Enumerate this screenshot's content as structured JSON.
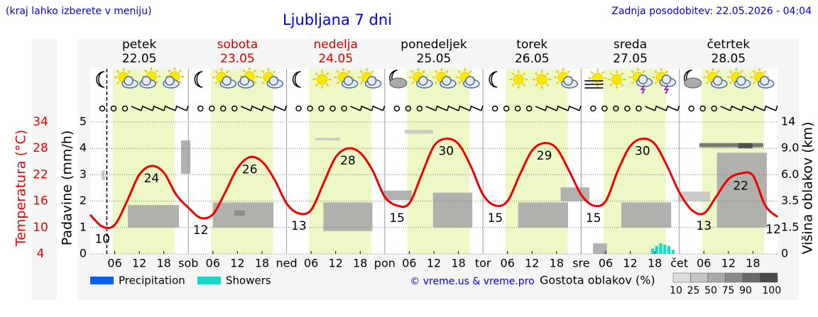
{
  "chart_data": {
    "type": "line",
    "menu_hint": "(kraj lahko izberete v meniju)",
    "title": "Ljubljana 7 dni",
    "updated": "Zadnja posodobitev: 22.05.2026 - 04:04",
    "ylabel": "Padavine (mm/h)",
    "y_temp_label": "Temperatura (°C)",
    "y2label": "Višina oblakov (km)",
    "xlim": [
      0,
      168
    ],
    "now_hour": 4.07,
    "daylight_hours": [
      5.5,
      20.7
    ],
    "ylim": [
      0,
      5
    ],
    "yticks": [
      0,
      1,
      2,
      3,
      4,
      5
    ],
    "temp_lim": [
      4,
      34
    ],
    "temp_ticks": [
      4,
      10,
      16,
      22,
      28,
      34
    ],
    "y2ticks": [
      0,
      1.5,
      3.5,
      6.0,
      9.0,
      14
    ],
    "y2tick_labels": [
      "0",
      "1.5",
      "3.5",
      "6.0",
      "9.0",
      "14"
    ],
    "grid": true,
    "days": [
      {
        "name": "petek",
        "date": "22.05",
        "abbr": null,
        "color": "#000000",
        "ticks": [
          {
            "value": 6,
            "label": "06"
          },
          {
            "value": 12,
            "label": "12"
          },
          {
            "value": 18,
            "label": "18"
          }
        ]
      },
      {
        "name": "sobota",
        "date": "23.05",
        "abbr": "sob",
        "color": "#e00000",
        "ticks": [
          {
            "value": 6,
            "label": "06"
          },
          {
            "value": 12,
            "label": "12"
          },
          {
            "value": 18,
            "label": "18"
          }
        ]
      },
      {
        "name": "nedelja",
        "date": "24.05",
        "abbr": "ned",
        "color": "#e00000",
        "ticks": [
          {
            "value": 6,
            "label": "06"
          },
          {
            "value": 12,
            "label": "12"
          },
          {
            "value": 18,
            "label": "18"
          }
        ]
      },
      {
        "name": "ponedeljek",
        "date": "25.05",
        "abbr": "pon",
        "color": "#000000",
        "ticks": [
          {
            "value": 6,
            "label": "06"
          },
          {
            "value": 12,
            "label": "12"
          },
          {
            "value": 18,
            "label": "18"
          }
        ]
      },
      {
        "name": "torek",
        "date": "26.05",
        "abbr": "tor",
        "color": "#000000",
        "ticks": [
          {
            "value": 6,
            "label": "06"
          },
          {
            "value": 12,
            "label": "12"
          },
          {
            "value": 18,
            "label": "18"
          }
        ]
      },
      {
        "name": "sreda",
        "date": "27.05",
        "abbr": "sre",
        "color": "#000000",
        "ticks": [
          {
            "value": 6,
            "label": "06"
          },
          {
            "value": 12,
            "label": "12"
          },
          {
            "value": 18,
            "label": "18"
          }
        ]
      },
      {
        "name": "četrtek",
        "date": "28.05",
        "abbr": "čet",
        "color": "#000000",
        "ticks": [
          {
            "value": 6,
            "label": "06"
          },
          {
            "value": 12,
            "label": "12"
          },
          {
            "value": 18,
            "label": "18"
          }
        ]
      }
    ],
    "temperature": {
      "color": "#ee0000",
      "hours": [
        0,
        3,
        6,
        9,
        12,
        15,
        18,
        21,
        24,
        27,
        30,
        33,
        36,
        39,
        42,
        45,
        48,
        51,
        54,
        57,
        60,
        63,
        66,
        69,
        72,
        75,
        78,
        81,
        84,
        87,
        90,
        93,
        96,
        99,
        102,
        105,
        108,
        111,
        114,
        117,
        120,
        123,
        126,
        129,
        132,
        135,
        138,
        141,
        144,
        147,
        150,
        153,
        156,
        159,
        162,
        165,
        168
      ],
      "values": [
        12.9,
        10.2,
        10.6,
        16,
        22,
        24,
        22.5,
        17.5,
        14.5,
        12.2,
        13,
        18,
        23.5,
        26,
        25,
        21,
        15.5,
        13.2,
        14,
        20,
        26,
        28,
        27,
        23,
        17,
        15,
        15.5,
        22,
        28.5,
        30.2,
        29,
        24,
        17.5,
        15,
        16,
        22,
        27.5,
        29.2,
        28,
        23,
        17.5,
        15,
        16,
        23,
        28.5,
        30.2,
        29,
        24,
        18,
        14,
        13.2,
        17,
        21,
        22.3,
        21.8,
        15,
        12.4
      ],
      "value_labels": [
        null,
        "10",
        null,
        null,
        null,
        "24",
        null,
        null,
        null,
        "12",
        null,
        null,
        null,
        "26",
        null,
        null,
        null,
        "13",
        null,
        null,
        null,
        "28",
        null,
        null,
        null,
        "15",
        null,
        null,
        null,
        "30",
        null,
        null,
        null,
        "15",
        null,
        null,
        null,
        "29",
        null,
        null,
        null,
        "15",
        null,
        null,
        null,
        "30",
        null,
        null,
        null,
        null,
        "13",
        null,
        null,
        "22",
        null,
        null,
        "12"
      ]
    },
    "series": [
      {
        "name": "Precipitation",
        "color": "#0a5ef0",
        "hours": [],
        "values": []
      },
      {
        "name": "Showers",
        "color": "#19d6c8",
        "hours": [
          137,
          138,
          139,
          140,
          141,
          142
        ],
        "values": [
          0.2,
          0.3,
          0.4,
          0.35,
          0.3,
          0.15
        ]
      }
    ],
    "clouds": [
      {
        "start": 22.2,
        "end": 24.5,
        "low": 6.1,
        "high": 10.5,
        "density": 50
      },
      {
        "start": 9.2,
        "end": 21.7,
        "low": 1.5,
        "high": 3.2,
        "density": 50
      },
      {
        "start": 2.8,
        "end": 3.6,
        "low": 5.5,
        "high": 6.5,
        "density": 25
      },
      {
        "start": 30,
        "end": 44.8,
        "low": 1.5,
        "high": 3.4,
        "density": 50
      },
      {
        "start": 35.2,
        "end": 37.8,
        "low": 2.4,
        "high": 2.8,
        "density": 75
      },
      {
        "start": 57,
        "end": 69,
        "low": 1.3,
        "high": 3.4,
        "density": 50
      },
      {
        "start": 55,
        "end": 61,
        "low": 10.5,
        "high": 11,
        "density": 25
      },
      {
        "start": 71.7,
        "end": 78.6,
        "low": 3.6,
        "high": 4.5,
        "density": 50
      },
      {
        "start": 83.8,
        "end": 93.4,
        "low": 1.5,
        "high": 4.3,
        "density": 50
      },
      {
        "start": 76.9,
        "end": 83.8,
        "low": 11.8,
        "high": 12.5,
        "density": 25
      },
      {
        "start": 104.6,
        "end": 116.8,
        "low": 1.5,
        "high": 3.4,
        "density": 50
      },
      {
        "start": 115,
        "end": 122,
        "low": 3.5,
        "high": 4.8,
        "density": 50
      },
      {
        "start": 129.8,
        "end": 142,
        "low": 1.5,
        "high": 3.4,
        "density": 50
      },
      {
        "start": 122.9,
        "end": 126.3,
        "low": 0,
        "high": 0.6,
        "density": 50
      },
      {
        "start": 148.9,
        "end": 164.5,
        "low": 9.2,
        "high": 10,
        "density": 90
      },
      {
        "start": 153.2,
        "end": 165.4,
        "low": 1.5,
        "high": 8.5,
        "density": 50
      },
      {
        "start": 143.7,
        "end": 151.5,
        "low": 3.5,
        "high": 4.4,
        "density": 25
      },
      {
        "start": 158.4,
        "end": 161.9,
        "low": 9,
        "high": 10,
        "density": 100
      }
    ],
    "copyright": "© vreme.us & vreme.pro",
    "density_title": "Gostota oblakov (%)",
    "density_scale": [
      10,
      25,
      50,
      75,
      90,
      100
    ],
    "density_colors": [
      "#dddddd",
      "#c4c4c4",
      "#a9a9a9",
      "#8a8a8a",
      "#6a6a6a",
      "#4a4a4a"
    ]
  }
}
